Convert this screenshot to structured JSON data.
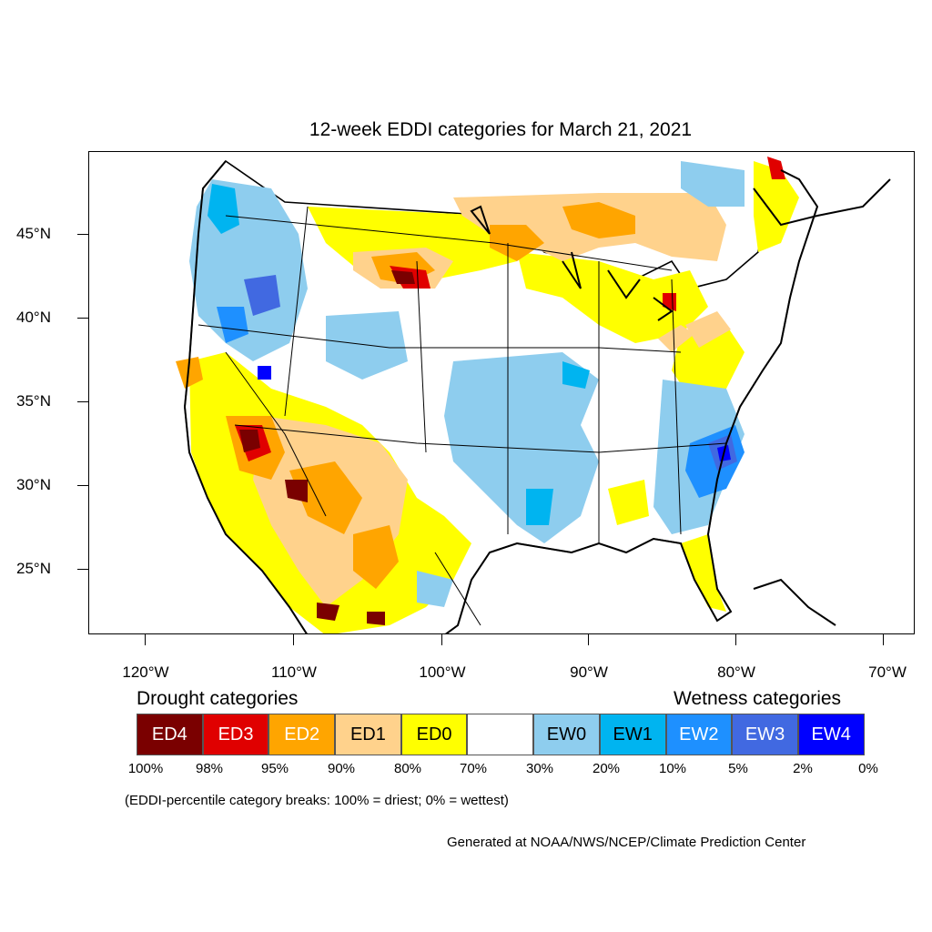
{
  "title": "12-week EDDI categories for March 21, 2021",
  "latitude_labels": [
    "45°N",
    "40°N",
    "35°N",
    "30°N",
    "25°N"
  ],
  "longitude_labels": [
    "120°W",
    "110°W",
    "100°W",
    "90°W",
    "80°W",
    "70°W"
  ],
  "legend": {
    "drought_heading": "Drought categories",
    "wetness_heading": "Wetness categories",
    "categories": [
      {
        "label": "ED4",
        "color": "#7a0000",
        "text_color": "#ffffff"
      },
      {
        "label": "ED3",
        "color": "#e00000",
        "text_color": "#ffffff"
      },
      {
        "label": "ED2",
        "color": "#ffa500",
        "text_color": "#ffffff"
      },
      {
        "label": "ED1",
        "color": "#ffd28c",
        "text_color": "#000000"
      },
      {
        "label": "ED0",
        "color": "#ffff00",
        "text_color": "#000000"
      },
      {
        "label": "",
        "color": "#ffffff",
        "text_color": "#000000"
      },
      {
        "label": "EW0",
        "color": "#8ecdee",
        "text_color": "#000000"
      },
      {
        "label": "EW1",
        "color": "#00b4f0",
        "text_color": "#000000"
      },
      {
        "label": "EW2",
        "color": "#1e90ff",
        "text_color": "#ffffff"
      },
      {
        "label": "EW3",
        "color": "#4169e1",
        "text_color": "#ffffff"
      },
      {
        "label": "EW4",
        "color": "#0000ff",
        "text_color": "#ffffff"
      }
    ],
    "percentiles": [
      "100%",
      "98%",
      "95%",
      "90%",
      "80%",
      "70%",
      "30%",
      "20%",
      "10%",
      "5%",
      "2%",
      "0%"
    ]
  },
  "note": "(EDDI-percentile category breaks: 100% = driest; 0% = wettest)",
  "credit": "Generated at NOAA/NWS/NCEP/Climate Prediction Center"
}
